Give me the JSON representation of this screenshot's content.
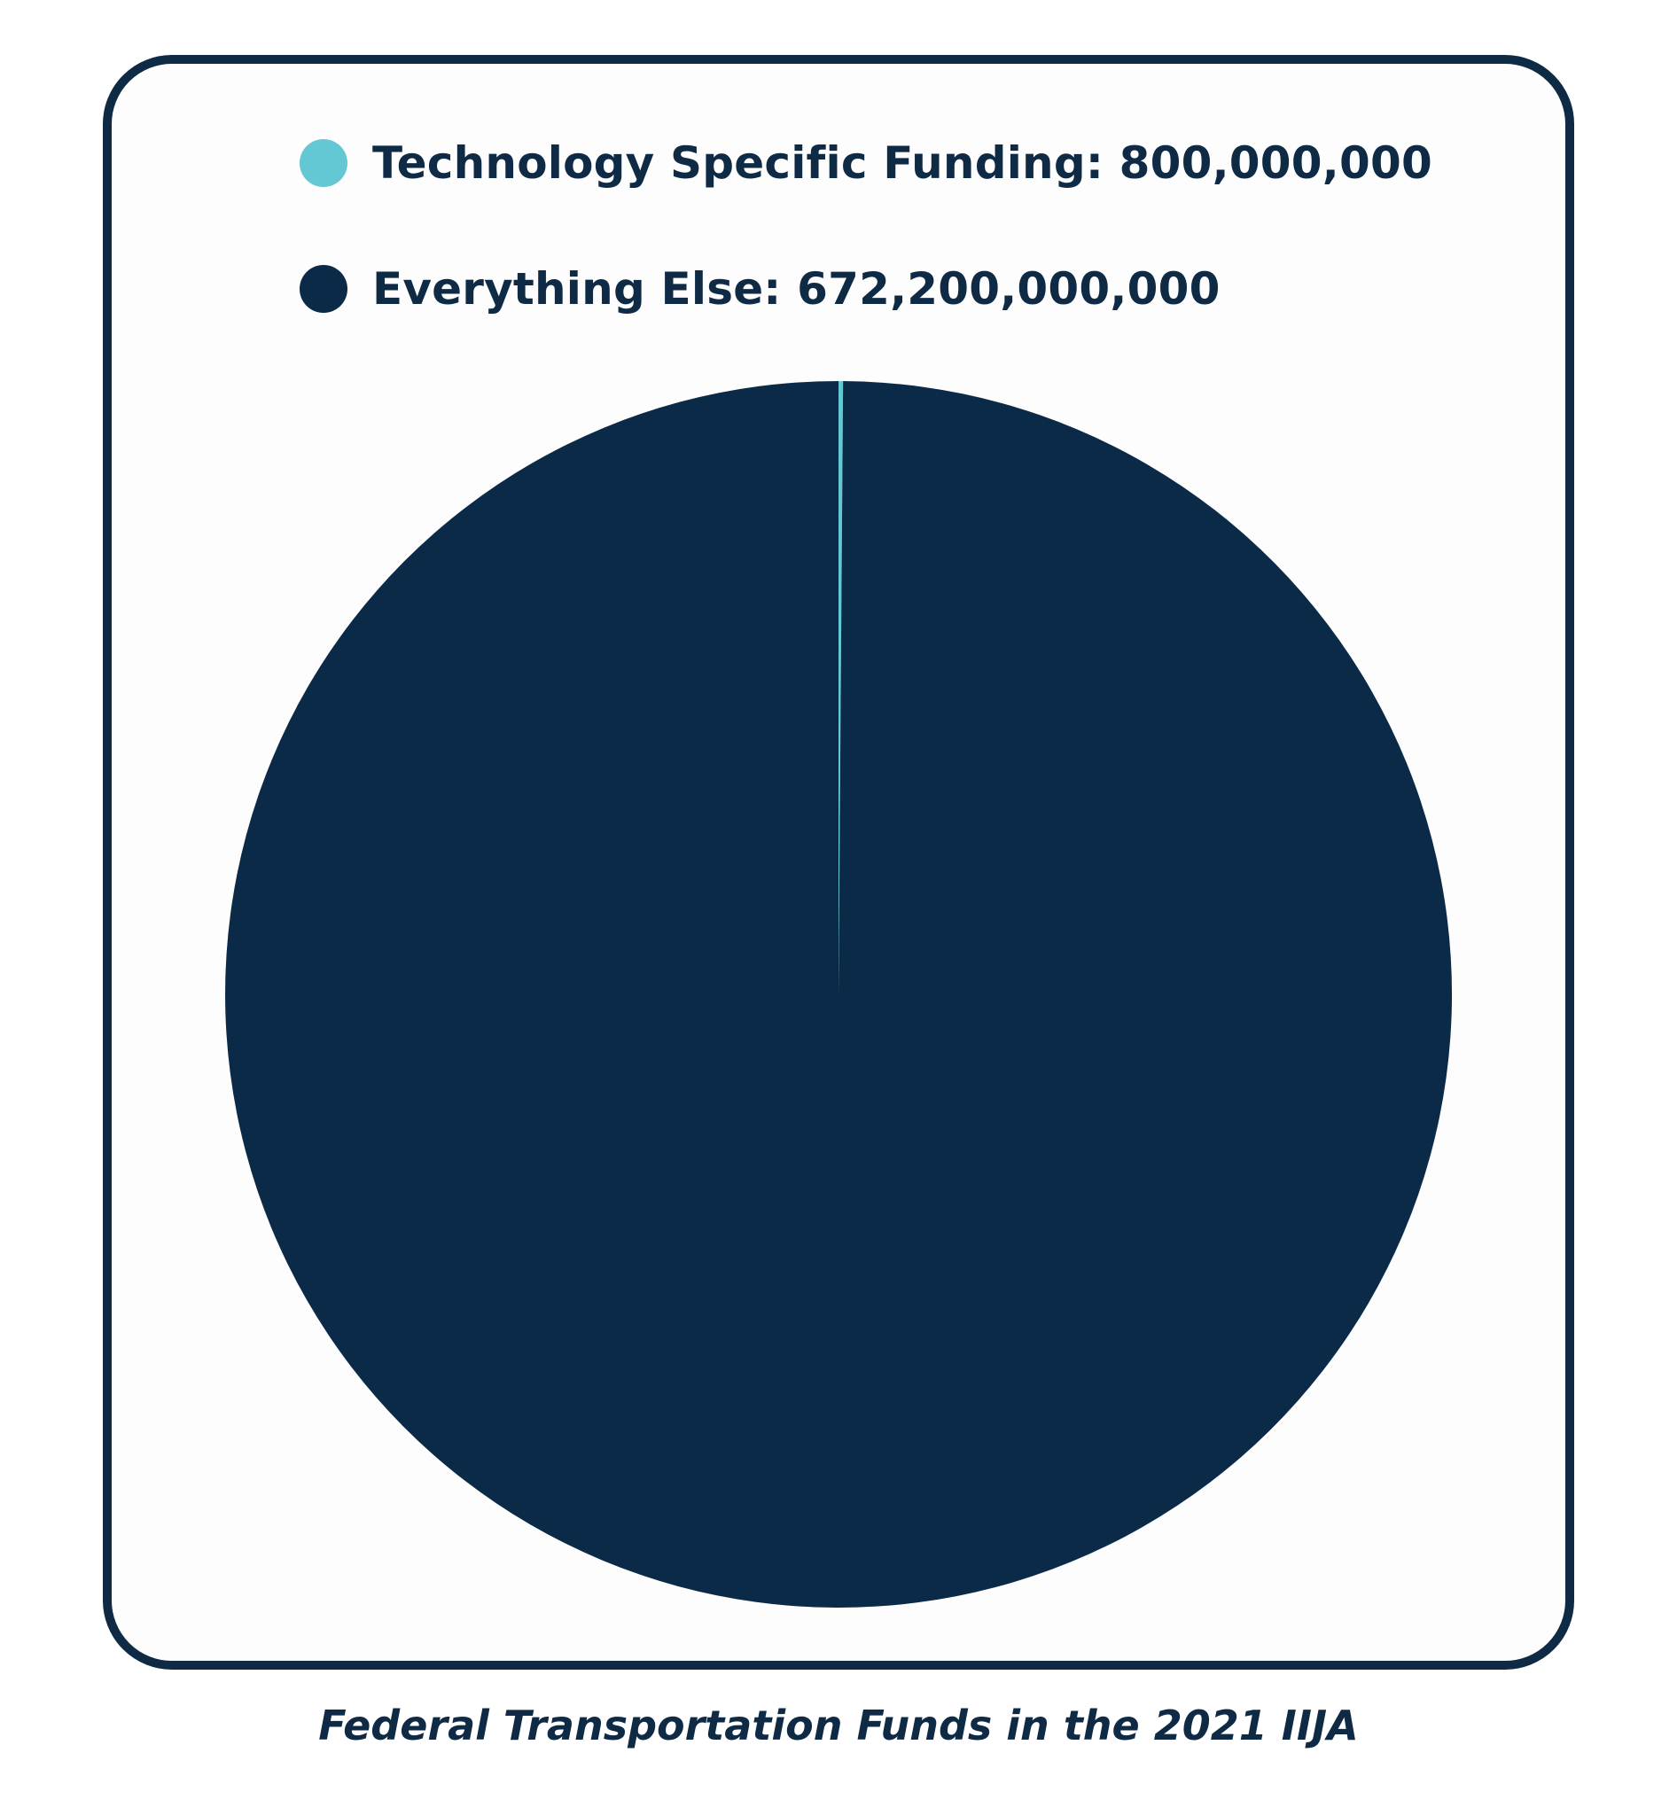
{
  "chart_data": {
    "type": "pie",
    "title": "",
    "caption": "Federal Transportation Funds in the 2021 IIJA",
    "legend_position": "top",
    "series": [
      {
        "name": "Technology Specific Funding",
        "value": 800000000,
        "label": "Technology Specific Funding: 800,000,000",
        "color": "#63c8d4"
      },
      {
        "name": "Everything Else",
        "value": 672200000000,
        "label": "Everything Else: 672,200,000,000",
        "color": "#0a2a48"
      }
    ]
  },
  "colors": {
    "frame": "#0f2a45",
    "text": "#0f2a45",
    "card_background": "#fdfdfd"
  }
}
